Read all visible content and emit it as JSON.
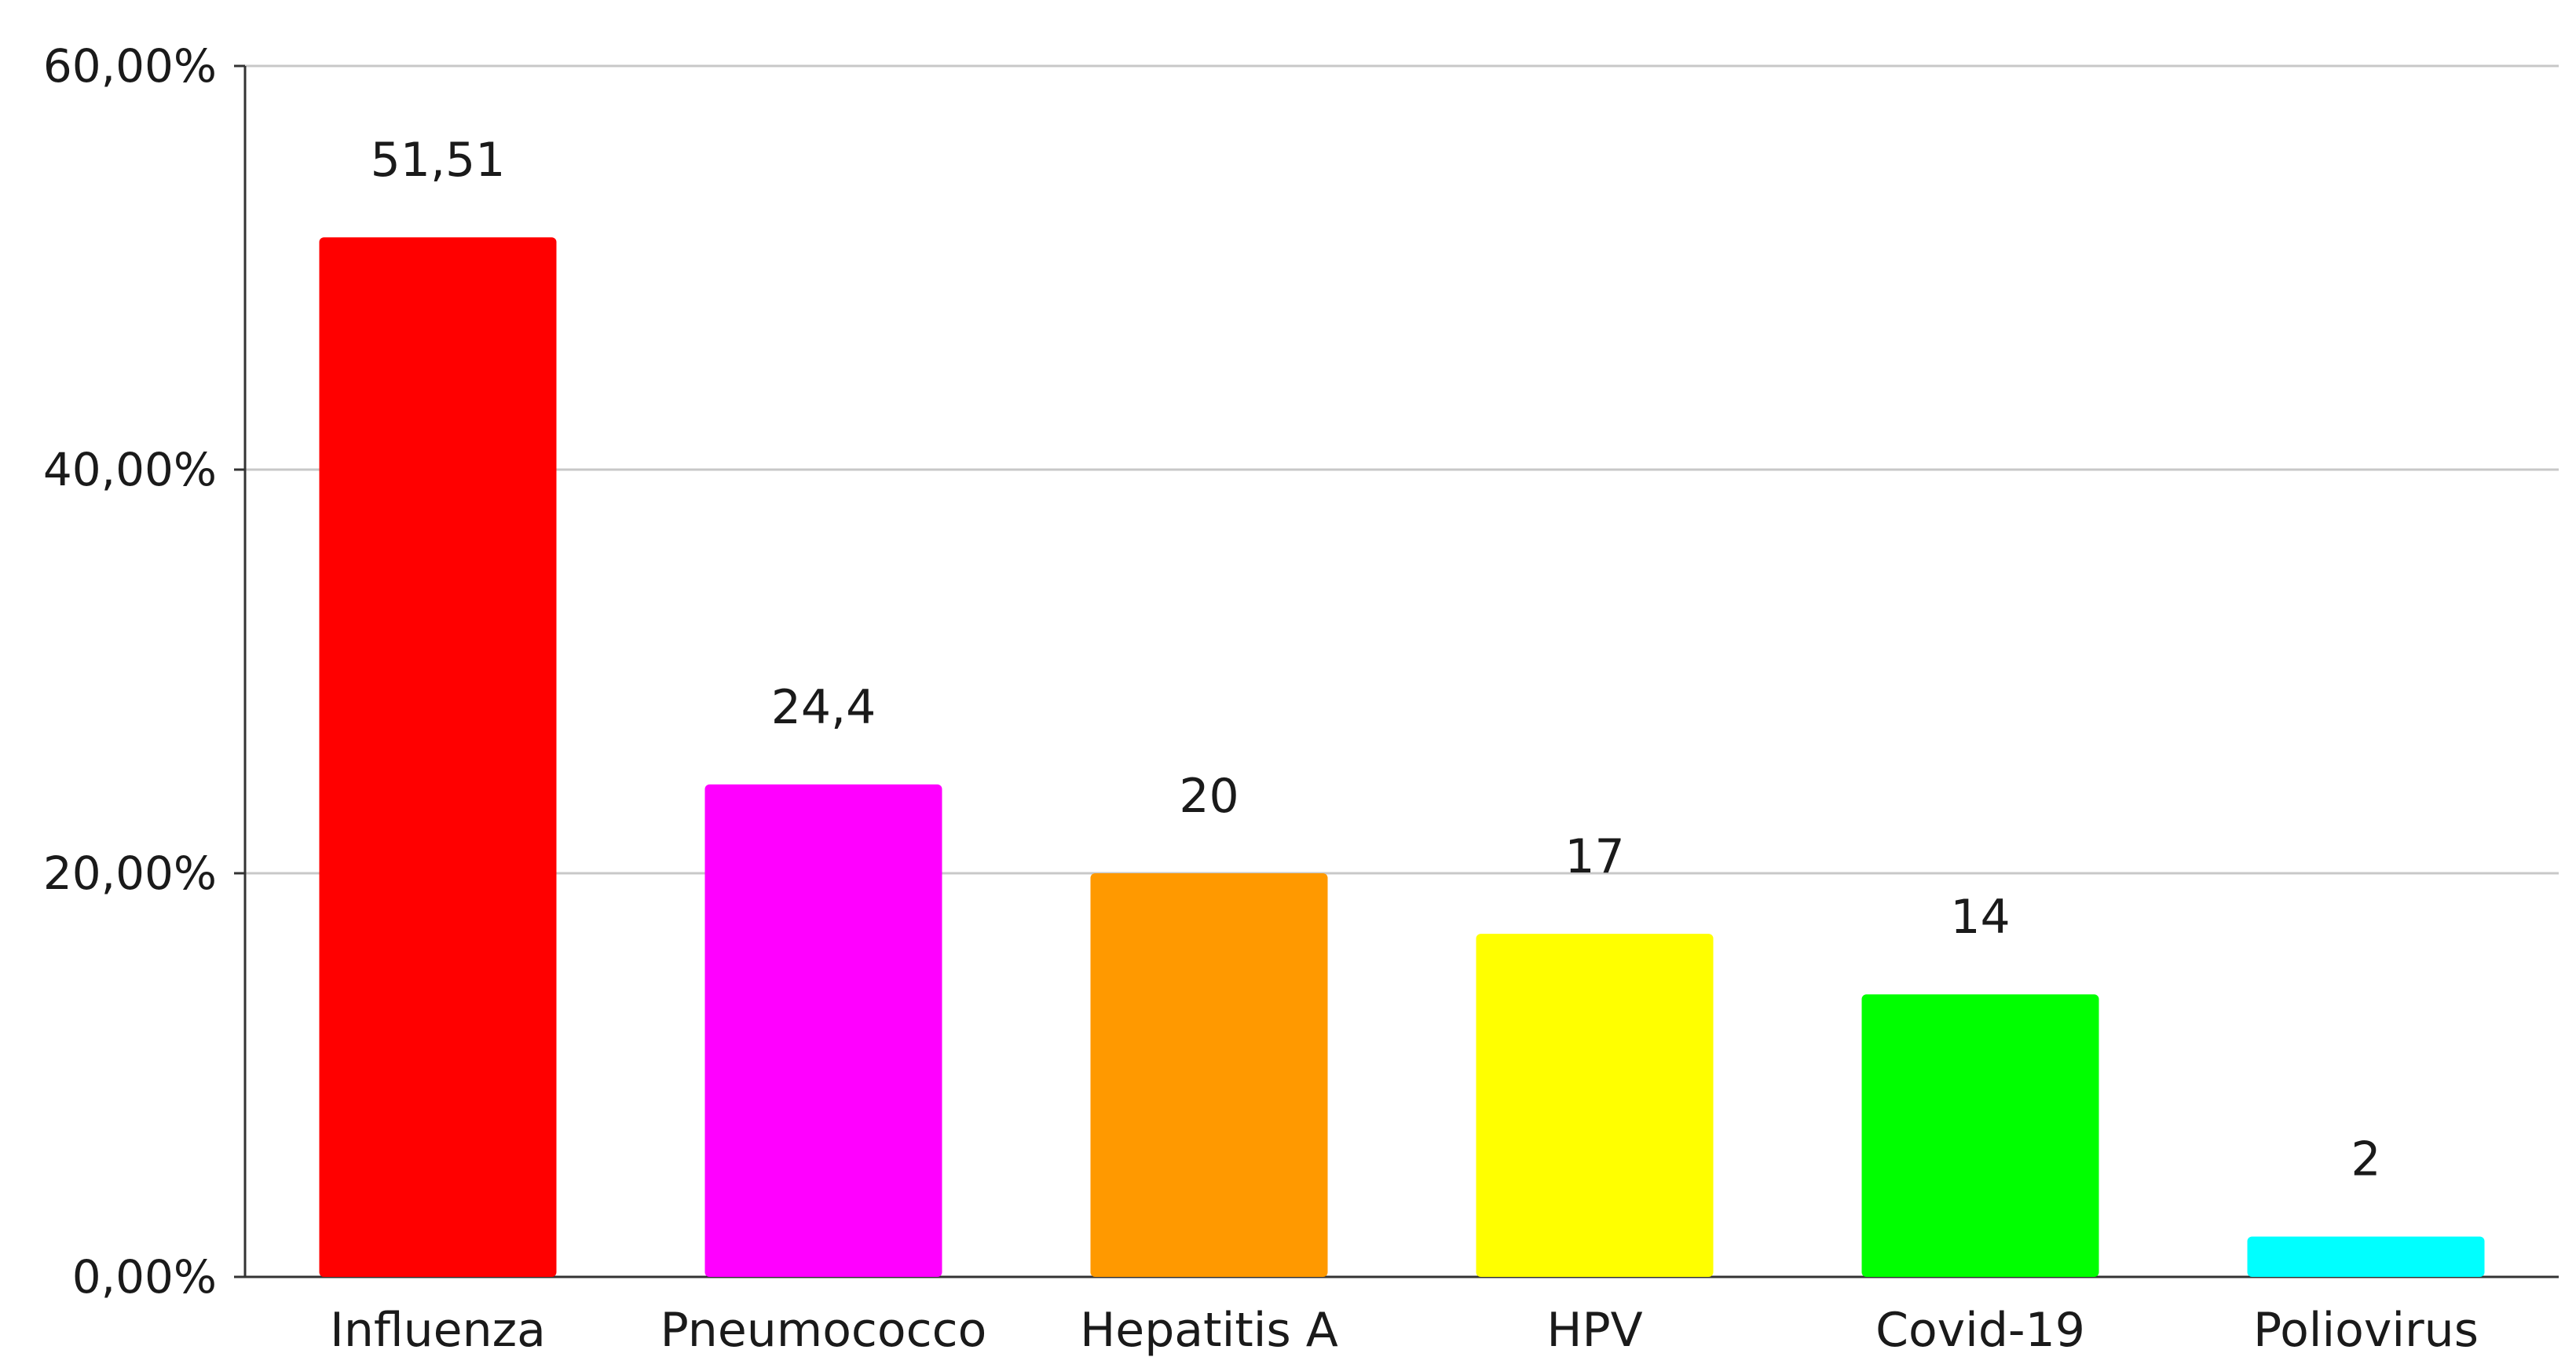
{
  "chart_data": {
    "type": "bar",
    "title": "",
    "xlabel": "",
    "ylabel": "",
    "categories": [
      "Influenza",
      "Pneumococco",
      "Hepatitis A",
      "HPV",
      "Covid-19",
      "Poliovirus"
    ],
    "values": [
      51.51,
      24.4,
      20,
      17,
      14,
      2
    ],
    "value_labels": [
      "51,51",
      "24,4",
      "20",
      "17",
      "14",
      "2"
    ],
    "colors": [
      "#ff0000",
      "#ff00ff",
      "#ff9900",
      "#ffff00",
      "#00ff00",
      "#00ffff"
    ],
    "ylim": [
      0,
      60
    ],
    "yticks": [
      0,
      20,
      40,
      60
    ],
    "ytick_labels": [
      "0,00%",
      "20,00%",
      "40,00%",
      "60,00%"
    ],
    "grid": true,
    "legend": "none"
  }
}
